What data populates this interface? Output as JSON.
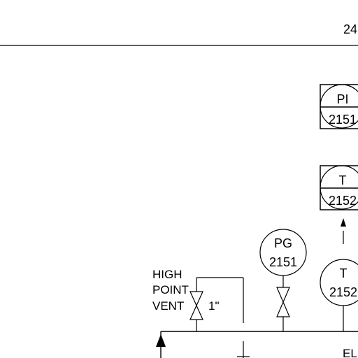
{
  "colors": {
    "line": "#000000",
    "background": "#ffffff"
  },
  "header": {
    "number": "24"
  },
  "instruments": {
    "pi_2151": {
      "tag": "PI",
      "number": "2151"
    },
    "ti_2152": {
      "tag": "T",
      "number": "2152"
    },
    "pg_2151": {
      "tag": "PG",
      "number": "2151"
    },
    "te_2152": {
      "tag": "T",
      "number": "2152"
    }
  },
  "labels": {
    "vent_line1": "HIGH",
    "vent_line2": "POINT",
    "vent_line3": "VENT",
    "vent_size": "1\"",
    "bottom_right": "EL"
  }
}
